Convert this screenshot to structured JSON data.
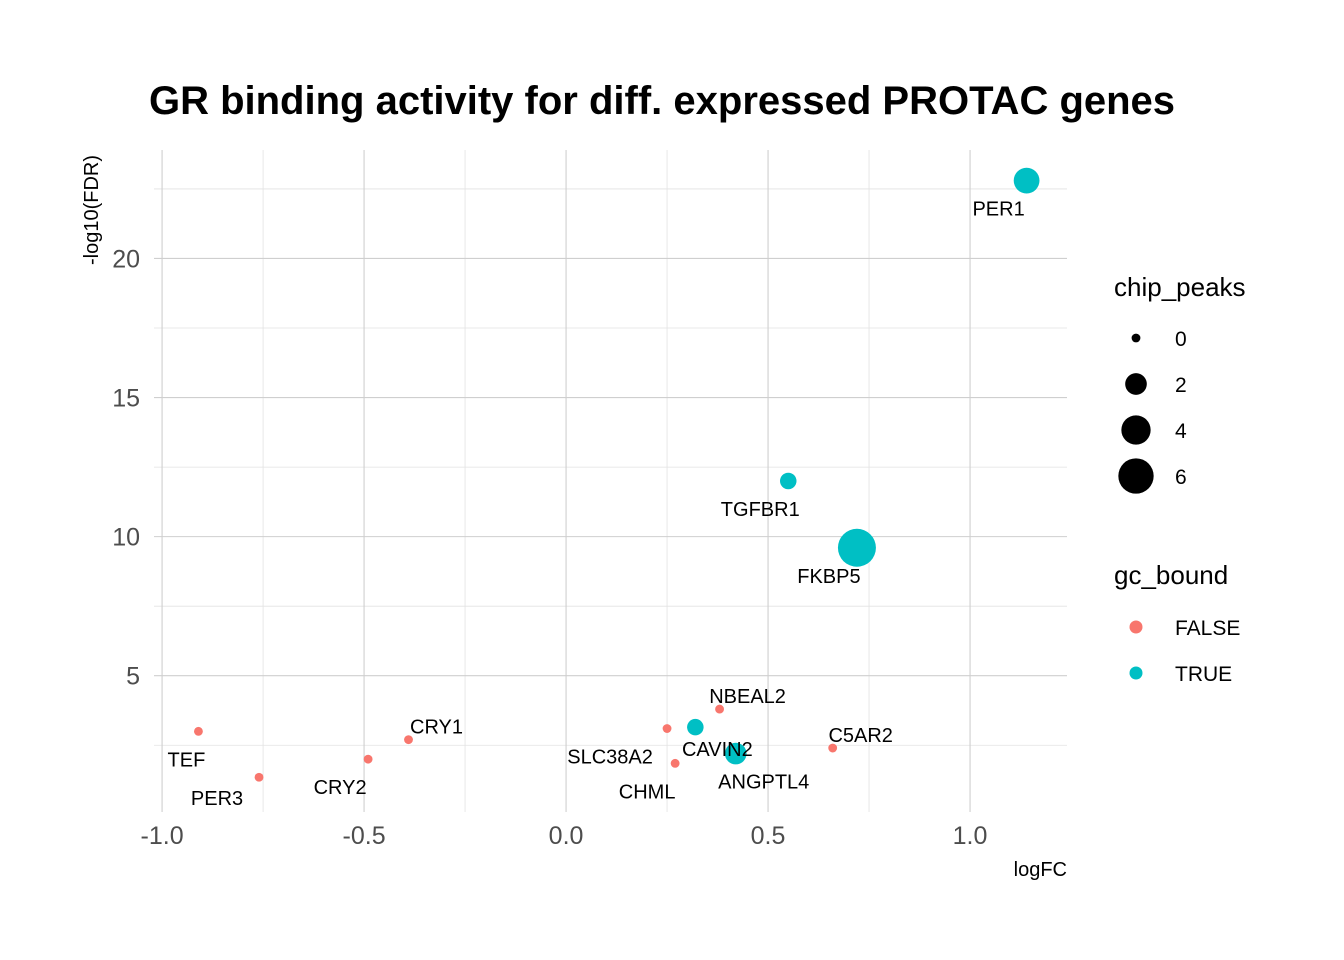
{
  "chart_data": {
    "type": "scatter",
    "title": "GR binding activity for diff. expressed PROTAC genes",
    "xlabel": "logFC",
    "ylabel": "-log10(FDR)",
    "xlim": [
      -1.02,
      1.24
    ],
    "ylim": [
      0.1,
      23.9
    ],
    "x_ticks": [
      -1.0,
      -0.5,
      0.0,
      0.5,
      1.0
    ],
    "x_tick_labels": [
      "-1.0",
      "-0.5",
      "0.0",
      "0.5",
      "1.0"
    ],
    "y_ticks": [
      5,
      10,
      15,
      20
    ],
    "y_tick_labels": [
      "5",
      "10",
      "15",
      "20"
    ],
    "grid": true,
    "size_scale_max": 7,
    "points": [
      {
        "label": "PER1",
        "x": 1.14,
        "y": 22.8,
        "chip_peaks": 3,
        "gc_bound": true
      },
      {
        "label": "TGFBR1",
        "x": 0.55,
        "y": 12.0,
        "chip_peaks": 1,
        "gc_bound": true
      },
      {
        "label": "FKBP5",
        "x": 0.72,
        "y": 9.6,
        "chip_peaks": 7,
        "gc_bound": true
      },
      {
        "label": "NBEAL2",
        "x": 0.38,
        "y": 3.8,
        "chip_peaks": 0,
        "gc_bound": false
      },
      {
        "label": "CAVIN2",
        "x": 0.32,
        "y": 3.15,
        "chip_peaks": 1,
        "gc_bound": true
      },
      {
        "label": "SLC38A2",
        "x": 0.25,
        "y": 3.1,
        "chip_peaks": 0,
        "gc_bound": false
      },
      {
        "label": "ANGPTL4",
        "x": 0.42,
        "y": 2.2,
        "chip_peaks": 2,
        "gc_bound": true
      },
      {
        "label": "CHML",
        "x": 0.27,
        "y": 1.85,
        "chip_peaks": 0,
        "gc_bound": false
      },
      {
        "label": "C5AR2",
        "x": 0.66,
        "y": 2.4,
        "chip_peaks": 0,
        "gc_bound": false
      },
      {
        "label": "CRY1",
        "x": -0.39,
        "y": 2.7,
        "chip_peaks": 0,
        "gc_bound": false
      },
      {
        "label": "CRY2",
        "x": -0.49,
        "y": 2.0,
        "chip_peaks": 0,
        "gc_bound": false
      },
      {
        "label": "TEF",
        "x": -0.91,
        "y": 3.0,
        "chip_peaks": 0,
        "gc_bound": false
      },
      {
        "label": "PER3",
        "x": -0.76,
        "y": 1.35,
        "chip_peaks": 0,
        "gc_bound": false
      }
    ],
    "legend": {
      "position": "right",
      "size_title": "chip_peaks",
      "size_entries": [
        {
          "label": "0",
          "value": 0
        },
        {
          "label": "2",
          "value": 2
        },
        {
          "label": "4",
          "value": 4
        },
        {
          "label": "6",
          "value": 6
        }
      ],
      "color_title": "gc_bound",
      "color_entries": [
        {
          "label": "FALSE",
          "color": "#F8766D"
        },
        {
          "label": "TRUE",
          "color": "#00BFC4"
        }
      ]
    },
    "colors": {
      "FALSE": "#F8766D",
      "TRUE": "#00BFC4"
    }
  }
}
